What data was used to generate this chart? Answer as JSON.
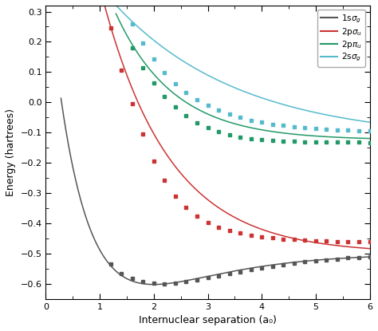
{
  "xlabel": "Internuclear separation (a₀)",
  "ylabel": "Energy (hartrees)",
  "xlim": [
    0,
    6
  ],
  "ylim": [
    -0.65,
    0.32
  ],
  "xticks": [
    0,
    1,
    2,
    3,
    4,
    5,
    6
  ],
  "yticks": [
    -0.6,
    -0.5,
    -0.4,
    -0.3,
    -0.2,
    -0.1,
    0.0,
    0.1,
    0.2,
    0.3
  ],
  "colors": [
    "#555555",
    "#cc3333",
    "#229966",
    "#55bbcc"
  ],
  "background_color": "#ffffff",
  "figsize": [
    4.74,
    4.15
  ],
  "dpi": 100,
  "curve_1sg": {
    "De": 0.1026,
    "Re": 2.0,
    "a": 0.72,
    "E_inf": -0.5,
    "R_start_line": 0.28
  },
  "curve_2psu": {
    "A": 1.96,
    "b": 0.8,
    "E_inf": -0.5,
    "R_start_line": 0.7
  },
  "curve_2ppu": {
    "A": 1.4,
    "b": 0.93,
    "E_inf": -0.125,
    "R_start_line": 1.3
  },
  "curve_2ssg": {
    "A": 0.78,
    "b": 0.43,
    "E_inf": -0.125,
    "R_start_line": 1.3
  },
  "dots_1sg_R": [
    1.2,
    1.4,
    1.6,
    1.8,
    2.0,
    2.2,
    2.4,
    2.6,
    2.8,
    3.0,
    3.2,
    3.4,
    3.6,
    3.8,
    4.0,
    4.2,
    4.4,
    4.6,
    4.8,
    5.0,
    5.2,
    5.4,
    5.6,
    5.8,
    6.0
  ],
  "dots_2psu_R": [
    1.2,
    1.4,
    1.6,
    1.8,
    2.0,
    2.2,
    2.4,
    2.6,
    2.8,
    3.0,
    3.2,
    3.4,
    3.6,
    3.8,
    4.0,
    4.2,
    4.4,
    4.6,
    4.8,
    5.0,
    5.2,
    5.4,
    5.6,
    5.8,
    6.0
  ],
  "dots_2ppu_R": [
    1.6,
    1.8,
    2.0,
    2.2,
    2.4,
    2.6,
    2.8,
    3.0,
    3.2,
    3.4,
    3.6,
    3.8,
    4.0,
    4.2,
    4.4,
    4.6,
    4.8,
    5.0,
    5.2,
    5.4,
    5.6,
    5.8,
    6.0
  ],
  "dots_2ssg_R": [
    1.6,
    1.8,
    2.0,
    2.2,
    2.4,
    2.6,
    2.8,
    3.0,
    3.2,
    3.4,
    3.6,
    3.8,
    4.0,
    4.2,
    4.4,
    4.6,
    4.8,
    5.0,
    5.2,
    5.4,
    5.6,
    5.8,
    6.0
  ],
  "dots_1sg_E": [
    -0.535,
    -0.566,
    -0.582,
    -0.592,
    -0.5993,
    -0.601,
    -0.598,
    -0.594,
    -0.588,
    -0.581,
    -0.574,
    -0.567,
    -0.561,
    -0.554,
    -0.548,
    -0.542,
    -0.537,
    -0.532,
    -0.528,
    -0.524,
    -0.521,
    -0.518,
    -0.515,
    -0.513,
    -0.511
  ],
  "dots_2psu_E": [
    0.245,
    0.105,
    -0.005,
    -0.105,
    -0.195,
    -0.258,
    -0.31,
    -0.348,
    -0.376,
    -0.398,
    -0.413,
    -0.424,
    -0.433,
    -0.44,
    -0.445,
    -0.449,
    -0.452,
    -0.454,
    -0.456,
    -0.458,
    -0.459,
    -0.46,
    -0.461,
    -0.461,
    -0.462
  ],
  "dots_2ppu_E": [
    0.18,
    0.115,
    0.065,
    0.02,
    -0.015,
    -0.044,
    -0.067,
    -0.085,
    -0.098,
    -0.108,
    -0.115,
    -0.12,
    -0.123,
    -0.126,
    -0.128,
    -0.129,
    -0.13,
    -0.131,
    -0.131,
    -0.132,
    -0.132,
    -0.132,
    -0.133
  ],
  "dots_2ssg_E": [
    0.258,
    0.195,
    0.142,
    0.098,
    0.062,
    0.033,
    0.009,
    -0.01,
    -0.026,
    -0.039,
    -0.05,
    -0.059,
    -0.066,
    -0.072,
    -0.077,
    -0.081,
    -0.084,
    -0.087,
    -0.089,
    -0.091,
    -0.093,
    -0.094,
    -0.095
  ]
}
